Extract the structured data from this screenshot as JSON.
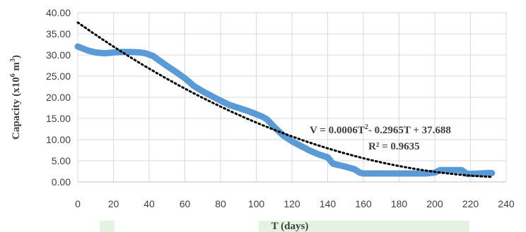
{
  "chart_data": {
    "type": "line",
    "xlabel": "T (days)",
    "ylabel_main": "Capacity (x10",
    "ylabel_exp": "6",
    "ylabel_unit": " m",
    "ylabel_unit_exp": "3",
    "ylabel_close": ")",
    "xlim": [
      0,
      240
    ],
    "ylim": [
      0,
      40
    ],
    "x_ticks": [
      "0",
      "20",
      "40",
      "60",
      "80",
      "100",
      "120",
      "140",
      "160",
      "180",
      "200",
      "220",
      "240"
    ],
    "y_ticks": [
      "0.00",
      "5.00",
      "10.00",
      "15.00",
      "20.00",
      "25.00",
      "30.00",
      "35.00",
      "40.00"
    ],
    "grid": true,
    "series": [
      {
        "color": "#5b9bd5",
        "x": [
          0,
          3,
          6,
          10,
          15,
          20,
          25,
          30,
          35,
          38,
          42,
          46,
          50,
          55,
          60,
          65,
          70,
          75,
          80,
          85,
          90,
          95,
          100,
          103,
          106,
          110,
          115,
          120,
          125,
          130,
          135,
          140,
          143,
          147,
          150,
          155,
          158,
          160,
          165,
          170,
          175,
          180,
          185,
          190,
          195,
          200,
          203,
          206,
          210,
          215,
          218,
          220,
          225,
          230,
          232
        ],
        "y": [
          32.0,
          31.5,
          31.0,
          30.6,
          30.4,
          30.6,
          30.7,
          30.7,
          30.6,
          30.4,
          29.8,
          28.6,
          27.4,
          26.0,
          24.5,
          22.7,
          21.4,
          20.3,
          19.2,
          18.2,
          17.5,
          16.8,
          16.0,
          15.5,
          14.8,
          13.0,
          11.0,
          9.6,
          8.5,
          7.4,
          6.5,
          5.8,
          4.3,
          3.9,
          3.6,
          3.0,
          2.2,
          2.0,
          2.0,
          2.0,
          2.0,
          2.0,
          2.0,
          2.0,
          2.0,
          2.2,
          2.8,
          2.8,
          2.8,
          2.8,
          1.9,
          1.9,
          2.0,
          2.1,
          2.1
        ]
      },
      {
        "style": "dotted",
        "color": "#000000",
        "trend": "polynomial",
        "coefficients": [
          0.0006,
          -0.2965,
          37.688
        ]
      }
    ],
    "annotations": [
      {
        "main": "V = 0.0006T",
        "sup": "2",
        "rest": "- 0.2965T + 37.688"
      },
      {
        "main": "R² = 0.9635"
      }
    ]
  }
}
